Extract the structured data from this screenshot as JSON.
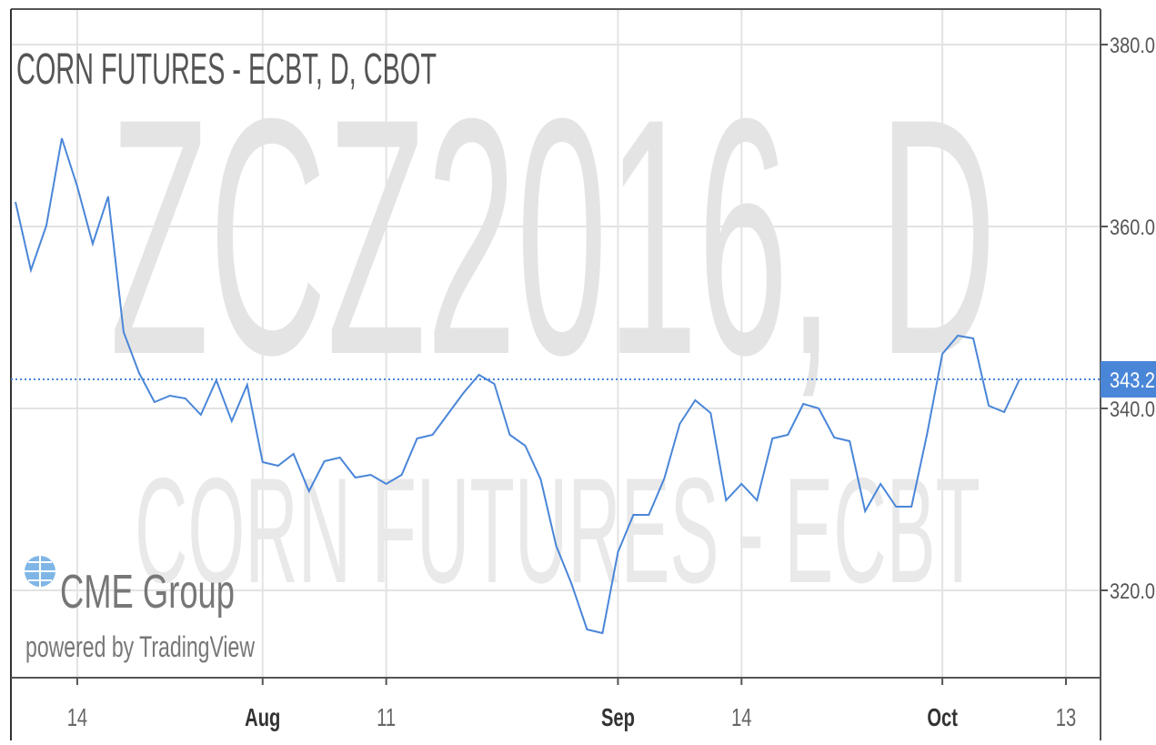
{
  "chart_data": {
    "type": "line",
    "title": "CORN FUTURES - ECBT, D, CBOT",
    "watermark": "ZCZ2016, D",
    "subwatermark": "CORN FUTURES - ECBT",
    "logo": "CME Group",
    "logo_caption": "powered by TradingView",
    "categories": [
      null,
      null,
      null,
      null,
      "14",
      null,
      null,
      null,
      null,
      null,
      null,
      null,
      null,
      null,
      null,
      null,
      "Aug",
      null,
      null,
      null,
      null,
      null,
      null,
      null,
      "11",
      null,
      null,
      null,
      null,
      null,
      null,
      null,
      null,
      null,
      null,
      null,
      null,
      null,
      null,
      "Sep",
      null,
      null,
      null,
      null,
      null,
      null,
      null,
      "14",
      null,
      null,
      null,
      null,
      null,
      null,
      null,
      null,
      null,
      null,
      null,
      null,
      "Oct",
      null,
      null,
      null,
      null,
      null,
      null,
      null,
      "13"
    ],
    "series": [
      {
        "name": "ZCZ2016",
        "color": "#4a86d8",
        "values": [
          362.7,
          355.2,
          360.1,
          369.7,
          364.4,
          358.1,
          363.3,
          348.4,
          343.9,
          340.7,
          341.4,
          341.1,
          339.3,
          343.1,
          338.6,
          342.6,
          334.1,
          333.7,
          335.0,
          330.9,
          334.2,
          334.6,
          332.4,
          332.7,
          331.7,
          332.7,
          336.7,
          337.1,
          339.4,
          341.7,
          343.7,
          342.7,
          337.1,
          335.9,
          332.2,
          324.9,
          320.7,
          315.7,
          315.3,
          324.2,
          328.3,
          328.3,
          332.3,
          338.3,
          340.9,
          339.5,
          329.9,
          331.7,
          329.9,
          336.7,
          337.1,
          340.5,
          340.0,
          336.8,
          336.4,
          328.7,
          331.7,
          329.2,
          329.2,
          337.1,
          346.0,
          348.0,
          347.7,
          340.3,
          339.6,
          343.2,
          null,
          null,
          null
        ]
      }
    ],
    "ylim": [
      310.4,
      383.4
    ],
    "yticks": [
      {
        "value": 320,
        "label": "320.0"
      },
      {
        "value": 340,
        "label": "340.0"
      },
      {
        "value": 360,
        "label": "360.0"
      },
      {
        "value": 380,
        "label": "380.0"
      }
    ],
    "grid": true
  }
}
